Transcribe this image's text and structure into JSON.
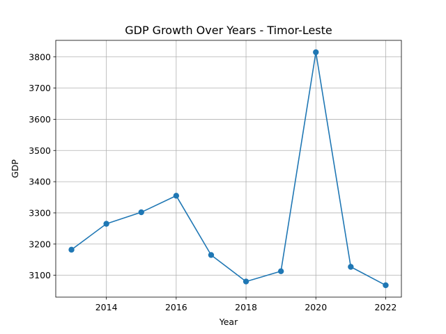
{
  "chart_data": {
    "type": "line",
    "title": "GDP Growth Over Years - Timor-Leste",
    "xlabel": "Year",
    "ylabel": "GDP",
    "x": [
      2013,
      2014,
      2015,
      2016,
      2017,
      2018,
      2019,
      2020,
      2021,
      2022
    ],
    "series": [
      {
        "values": [
          3182,
          3265,
          3302,
          3355,
          3165,
          3080,
          3113,
          3815,
          3127,
          3068
        ]
      }
    ],
    "xticks": [
      2014,
      2016,
      2018,
      2020,
      2022
    ],
    "yticks": [
      3100,
      3200,
      3300,
      3400,
      3500,
      3600,
      3700,
      3800
    ],
    "xlim": [
      2012.55,
      2022.45
    ],
    "ylim": [
      3030,
      3853
    ],
    "grid": true,
    "line_color": "#1f77b4",
    "marker": "circle"
  }
}
